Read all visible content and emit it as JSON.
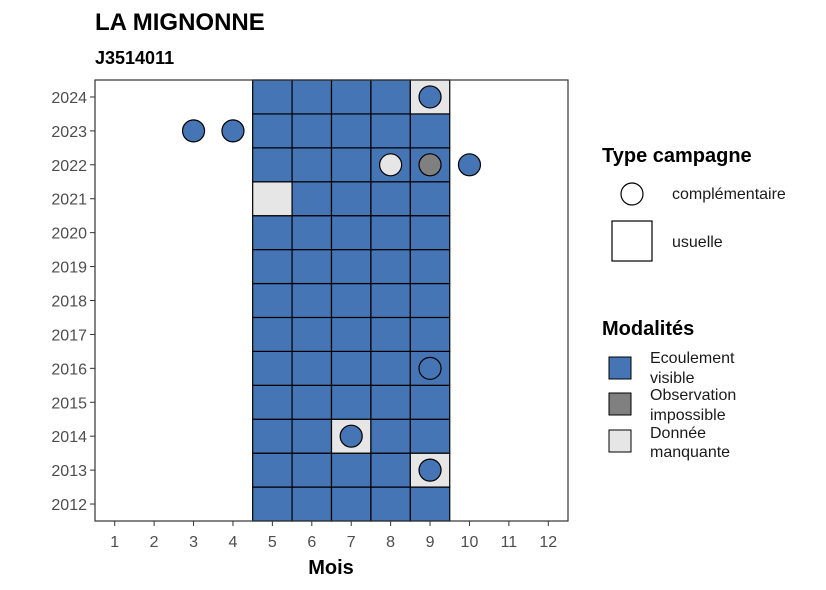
{
  "chart_data": {
    "type": "heatmap",
    "title": "LA MIGNONNE",
    "subtitle": "J3514011",
    "xlabel": "Mois",
    "ylabel": "",
    "x_ticks": [
      "1",
      "2",
      "3",
      "4",
      "5",
      "6",
      "7",
      "8",
      "9",
      "10",
      "11",
      "12"
    ],
    "y_ticks": [
      "2012",
      "2013",
      "2014",
      "2015",
      "2016",
      "2017",
      "2018",
      "2019",
      "2020",
      "2021",
      "2022",
      "2023",
      "2024"
    ],
    "xlim": [
      0.5,
      12.5
    ],
    "ylim": [
      2011.5,
      2024.5
    ],
    "grid": false,
    "colors": {
      "Ecoulement visible": "#4575b4",
      "Observation impossible": "#808080",
      "Donnée manquante": "#e6e6e6"
    },
    "tiles": [
      {
        "year": 2012,
        "month": 5,
        "modalite": "Ecoulement visible"
      },
      {
        "year": 2012,
        "month": 6,
        "modalite": "Ecoulement visible"
      },
      {
        "year": 2012,
        "month": 7,
        "modalite": "Ecoulement visible"
      },
      {
        "year": 2012,
        "month": 8,
        "modalite": "Ecoulement visible"
      },
      {
        "year": 2012,
        "month": 9,
        "modalite": "Ecoulement visible"
      },
      {
        "year": 2013,
        "month": 5,
        "modalite": "Ecoulement visible"
      },
      {
        "year": 2013,
        "month": 6,
        "modalite": "Ecoulement visible"
      },
      {
        "year": 2013,
        "month": 7,
        "modalite": "Ecoulement visible"
      },
      {
        "year": 2013,
        "month": 8,
        "modalite": "Ecoulement visible"
      },
      {
        "year": 2013,
        "month": 9,
        "modalite": "Donnée manquante"
      },
      {
        "year": 2014,
        "month": 5,
        "modalite": "Ecoulement visible"
      },
      {
        "year": 2014,
        "month": 6,
        "modalite": "Ecoulement visible"
      },
      {
        "year": 2014,
        "month": 7,
        "modalite": "Donnée manquante"
      },
      {
        "year": 2014,
        "month": 8,
        "modalite": "Ecoulement visible"
      },
      {
        "year": 2014,
        "month": 9,
        "modalite": "Ecoulement visible"
      },
      {
        "year": 2015,
        "month": 5,
        "modalite": "Ecoulement visible"
      },
      {
        "year": 2015,
        "month": 6,
        "modalite": "Ecoulement visible"
      },
      {
        "year": 2015,
        "month": 7,
        "modalite": "Ecoulement visible"
      },
      {
        "year": 2015,
        "month": 8,
        "modalite": "Ecoulement visible"
      },
      {
        "year": 2015,
        "month": 9,
        "modalite": "Ecoulement visible"
      },
      {
        "year": 2016,
        "month": 5,
        "modalite": "Ecoulement visible"
      },
      {
        "year": 2016,
        "month": 6,
        "modalite": "Ecoulement visible"
      },
      {
        "year": 2016,
        "month": 7,
        "modalite": "Ecoulement visible"
      },
      {
        "year": 2016,
        "month": 8,
        "modalite": "Ecoulement visible"
      },
      {
        "year": 2016,
        "month": 9,
        "modalite": "Ecoulement visible"
      },
      {
        "year": 2017,
        "month": 5,
        "modalite": "Ecoulement visible"
      },
      {
        "year": 2017,
        "month": 6,
        "modalite": "Ecoulement visible"
      },
      {
        "year": 2017,
        "month": 7,
        "modalite": "Ecoulement visible"
      },
      {
        "year": 2017,
        "month": 8,
        "modalite": "Ecoulement visible"
      },
      {
        "year": 2017,
        "month": 9,
        "modalite": "Ecoulement visible"
      },
      {
        "year": 2018,
        "month": 5,
        "modalite": "Ecoulement visible"
      },
      {
        "year": 2018,
        "month": 6,
        "modalite": "Ecoulement visible"
      },
      {
        "year": 2018,
        "month": 7,
        "modalite": "Ecoulement visible"
      },
      {
        "year": 2018,
        "month": 8,
        "modalite": "Ecoulement visible"
      },
      {
        "year": 2018,
        "month": 9,
        "modalite": "Ecoulement visible"
      },
      {
        "year": 2019,
        "month": 5,
        "modalite": "Ecoulement visible"
      },
      {
        "year": 2019,
        "month": 6,
        "modalite": "Ecoulement visible"
      },
      {
        "year": 2019,
        "month": 7,
        "modalite": "Ecoulement visible"
      },
      {
        "year": 2019,
        "month": 8,
        "modalite": "Ecoulement visible"
      },
      {
        "year": 2019,
        "month": 9,
        "modalite": "Ecoulement visible"
      },
      {
        "year": 2020,
        "month": 5,
        "modalite": "Ecoulement visible"
      },
      {
        "year": 2020,
        "month": 6,
        "modalite": "Ecoulement visible"
      },
      {
        "year": 2020,
        "month": 7,
        "modalite": "Ecoulement visible"
      },
      {
        "year": 2020,
        "month": 8,
        "modalite": "Ecoulement visible"
      },
      {
        "year": 2020,
        "month": 9,
        "modalite": "Ecoulement visible"
      },
      {
        "year": 2021,
        "month": 5,
        "modalite": "Donnée manquante"
      },
      {
        "year": 2021,
        "month": 6,
        "modalite": "Ecoulement visible"
      },
      {
        "year": 2021,
        "month": 7,
        "modalite": "Ecoulement visible"
      },
      {
        "year": 2021,
        "month": 8,
        "modalite": "Ecoulement visible"
      },
      {
        "year": 2021,
        "month": 9,
        "modalite": "Ecoulement visible"
      },
      {
        "year": 2022,
        "month": 5,
        "modalite": "Ecoulement visible"
      },
      {
        "year": 2022,
        "month": 6,
        "modalite": "Ecoulement visible"
      },
      {
        "year": 2022,
        "month": 7,
        "modalite": "Ecoulement visible"
      },
      {
        "year": 2022,
        "month": 8,
        "modalite": "Ecoulement visible"
      },
      {
        "year": 2022,
        "month": 9,
        "modalite": "Ecoulement visible"
      },
      {
        "year": 2023,
        "month": 5,
        "modalite": "Ecoulement visible"
      },
      {
        "year": 2023,
        "month": 6,
        "modalite": "Ecoulement visible"
      },
      {
        "year": 2023,
        "month": 7,
        "modalite": "Ecoulement visible"
      },
      {
        "year": 2023,
        "month": 8,
        "modalite": "Ecoulement visible"
      },
      {
        "year": 2023,
        "month": 9,
        "modalite": "Ecoulement visible"
      },
      {
        "year": 2024,
        "month": 5,
        "modalite": "Ecoulement visible"
      },
      {
        "year": 2024,
        "month": 6,
        "modalite": "Ecoulement visible"
      },
      {
        "year": 2024,
        "month": 7,
        "modalite": "Ecoulement visible"
      },
      {
        "year": 2024,
        "month": 8,
        "modalite": "Ecoulement visible"
      },
      {
        "year": 2024,
        "month": 9,
        "modalite": "Donnée manquante"
      }
    ],
    "points": [
      {
        "year": 2013,
        "month": 9,
        "modalite": "Ecoulement visible",
        "campagne": "complémentaire"
      },
      {
        "year": 2014,
        "month": 7,
        "modalite": "Ecoulement visible",
        "campagne": "complémentaire"
      },
      {
        "year": 2016,
        "month": 9,
        "modalite": "Ecoulement visible",
        "campagne": "complémentaire"
      },
      {
        "year": 2022,
        "month": 8,
        "modalite": "Donnée manquante",
        "campagne": "complémentaire"
      },
      {
        "year": 2022,
        "month": 9,
        "modalite": "Observation impossible",
        "campagne": "complémentaire"
      },
      {
        "year": 2022,
        "month": 10,
        "modalite": "Ecoulement visible",
        "campagne": "complémentaire"
      },
      {
        "year": 2023,
        "month": 3,
        "modalite": "Ecoulement visible",
        "campagne": "complémentaire"
      },
      {
        "year": 2023,
        "month": 4,
        "modalite": "Ecoulement visible",
        "campagne": "complémentaire"
      },
      {
        "year": 2024,
        "month": 9,
        "modalite": "Ecoulement visible",
        "campagne": "complémentaire"
      }
    ],
    "legend": {
      "placement": "right",
      "type_title": "Type campagne",
      "type_items": [
        {
          "label": "complémentaire",
          "shape": "circle"
        },
        {
          "label": "usuelle",
          "shape": "square"
        }
      ],
      "modalite_title": "Modalités",
      "modalite_items": [
        {
          "line1": "Ecoulement",
          "line2": "visible",
          "color": "#4575b4"
        },
        {
          "line1": "Observation",
          "line2": "impossible",
          "color": "#808080"
        },
        {
          "line1": "Donnée",
          "line2": "manquante",
          "color": "#e6e6e6"
        }
      ]
    }
  }
}
